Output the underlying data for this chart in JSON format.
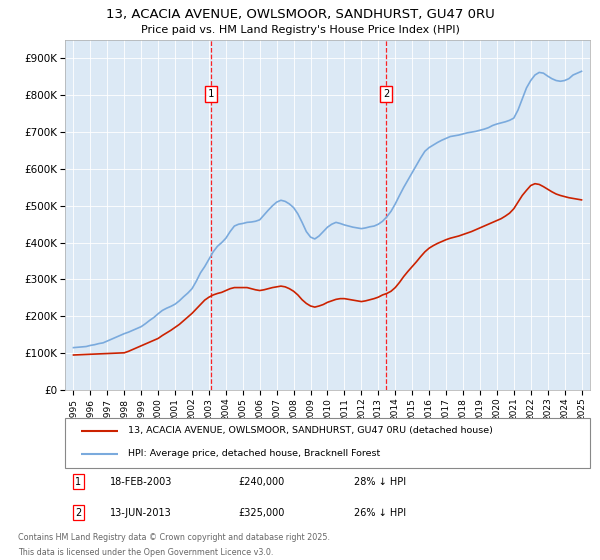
{
  "title_line1": "13, ACACIA AVENUE, OWLSMOOR, SANDHURST, GU47 0RU",
  "title_line2": "Price paid vs. HM Land Registry's House Price Index (HPI)",
  "plot_bg_color": "#dce9f5",
  "legend_entry1": "13, ACACIA AVENUE, OWLSMOOR, SANDHURST, GU47 0RU (detached house)",
  "legend_entry2": "HPI: Average price, detached house, Bracknell Forest",
  "footnote_line1": "Contains HM Land Registry data © Crown copyright and database right 2025.",
  "footnote_line2": "This data is licensed under the Open Government Licence v3.0.",
  "transaction1_date": "18-FEB-2003",
  "transaction1_price": "£240,000",
  "transaction1_label": "28% ↓ HPI",
  "transaction2_date": "13-JUN-2013",
  "transaction2_price": "£325,000",
  "transaction2_label": "26% ↓ HPI",
  "marker1_x": 2003.13,
  "marker2_x": 2013.45,
  "ylim_min": 0,
  "ylim_max": 950000,
  "xlim_min": 1994.5,
  "xlim_max": 2025.5,
  "red_line_color": "#cc2200",
  "blue_line_color": "#7aaadd",
  "hpi_data_x": [
    1995,
    1995.25,
    1995.5,
    1995.75,
    1996,
    1996.25,
    1996.5,
    1996.75,
    1997,
    1997.25,
    1997.5,
    1997.75,
    1998,
    1998.25,
    1998.5,
    1998.75,
    1999,
    1999.25,
    1999.5,
    1999.75,
    2000,
    2000.25,
    2000.5,
    2000.75,
    2001,
    2001.25,
    2001.5,
    2001.75,
    2002,
    2002.25,
    2002.5,
    2002.75,
    2003,
    2003.25,
    2003.5,
    2003.75,
    2004,
    2004.25,
    2004.5,
    2004.75,
    2005,
    2005.25,
    2005.5,
    2005.75,
    2006,
    2006.25,
    2006.5,
    2006.75,
    2007,
    2007.25,
    2007.5,
    2007.75,
    2008,
    2008.25,
    2008.5,
    2008.75,
    2009,
    2009.25,
    2009.5,
    2009.75,
    2010,
    2010.25,
    2010.5,
    2010.75,
    2011,
    2011.25,
    2011.5,
    2011.75,
    2012,
    2012.25,
    2012.5,
    2012.75,
    2013,
    2013.25,
    2013.5,
    2013.75,
    2014,
    2014.25,
    2014.5,
    2014.75,
    2015,
    2015.25,
    2015.5,
    2015.75,
    2016,
    2016.25,
    2016.5,
    2016.75,
    2017,
    2017.25,
    2017.5,
    2017.75,
    2018,
    2018.25,
    2018.5,
    2018.75,
    2019,
    2019.25,
    2019.5,
    2019.75,
    2020,
    2020.25,
    2020.5,
    2020.75,
    2021,
    2021.25,
    2021.5,
    2021.75,
    2022,
    2022.25,
    2022.5,
    2022.75,
    2023,
    2023.25,
    2023.5,
    2023.75,
    2024,
    2024.25,
    2024.5,
    2024.75,
    2025
  ],
  "hpi_data_y": [
    115000,
    116000,
    117000,
    118000,
    121000,
    123000,
    126000,
    128000,
    133000,
    138000,
    143000,
    148000,
    153000,
    157000,
    162000,
    167000,
    172000,
    180000,
    189000,
    197000,
    207000,
    216000,
    222000,
    227000,
    233000,
    242000,
    253000,
    263000,
    275000,
    295000,
    318000,
    335000,
    355000,
    375000,
    390000,
    400000,
    412000,
    430000,
    445000,
    450000,
    452000,
    455000,
    456000,
    458000,
    462000,
    475000,
    488000,
    500000,
    510000,
    515000,
    512000,
    505000,
    495000,
    478000,
    455000,
    430000,
    415000,
    410000,
    418000,
    430000,
    442000,
    450000,
    455000,
    452000,
    448000,
    445000,
    442000,
    440000,
    438000,
    440000,
    443000,
    445000,
    450000,
    458000,
    470000,
    485000,
    505000,
    528000,
    550000,
    570000,
    590000,
    610000,
    630000,
    648000,
    658000,
    665000,
    672000,
    678000,
    683000,
    688000,
    690000,
    692000,
    695000,
    698000,
    700000,
    702000,
    705000,
    708000,
    712000,
    718000,
    722000,
    725000,
    728000,
    732000,
    738000,
    760000,
    790000,
    820000,
    840000,
    855000,
    862000,
    860000,
    852000,
    845000,
    840000,
    838000,
    840000,
    845000,
    855000,
    860000,
    865000
  ],
  "price_data_x": [
    1995,
    1995.25,
    1995.5,
    1995.75,
    1996,
    1996.25,
    1996.5,
    1996.75,
    1997,
    1997.25,
    1997.5,
    1997.75,
    1998,
    1998.25,
    1998.5,
    1998.75,
    1999,
    1999.25,
    1999.5,
    1999.75,
    2000,
    2000.25,
    2000.5,
    2000.75,
    2001,
    2001.25,
    2001.5,
    2001.75,
    2002,
    2002.25,
    2002.5,
    2002.75,
    2003,
    2003.25,
    2003.5,
    2003.75,
    2004,
    2004.25,
    2004.5,
    2004.75,
    2005,
    2005.25,
    2005.5,
    2005.75,
    2006,
    2006.25,
    2006.5,
    2006.75,
    2007,
    2007.25,
    2007.5,
    2007.75,
    2008,
    2008.25,
    2008.5,
    2008.75,
    2009,
    2009.25,
    2009.5,
    2009.75,
    2010,
    2010.25,
    2010.5,
    2010.75,
    2011,
    2011.25,
    2011.5,
    2011.75,
    2012,
    2012.25,
    2012.5,
    2012.75,
    2013,
    2013.25,
    2013.5,
    2013.75,
    2014,
    2014.25,
    2014.5,
    2014.75,
    2015,
    2015.25,
    2015.5,
    2015.75,
    2016,
    2016.25,
    2016.5,
    2016.75,
    2017,
    2017.25,
    2017.5,
    2017.75,
    2018,
    2018.25,
    2018.5,
    2018.75,
    2019,
    2019.25,
    2019.5,
    2019.75,
    2020,
    2020.25,
    2020.5,
    2020.75,
    2021,
    2021.25,
    2021.5,
    2021.75,
    2022,
    2022.25,
    2022.5,
    2022.75,
    2023,
    2023.25,
    2023.5,
    2023.75,
    2024,
    2024.25,
    2024.5,
    2024.75,
    2025
  ],
  "price_data_y": [
    95000,
    95500,
    96000,
    96500,
    97000,
    97500,
    98000,
    98500,
    99000,
    99500,
    100000,
    100500,
    101000,
    105000,
    110000,
    115000,
    120000,
    125000,
    130000,
    135000,
    140000,
    148000,
    155000,
    162000,
    170000,
    178000,
    188000,
    198000,
    208000,
    220000,
    232000,
    244000,
    252000,
    258000,
    262000,
    265000,
    270000,
    275000,
    278000,
    278000,
    278000,
    278000,
    275000,
    272000,
    270000,
    272000,
    275000,
    278000,
    280000,
    282000,
    280000,
    275000,
    268000,
    258000,
    245000,
    235000,
    228000,
    225000,
    228000,
    232000,
    238000,
    242000,
    246000,
    248000,
    248000,
    246000,
    244000,
    242000,
    240000,
    242000,
    245000,
    248000,
    252000,
    258000,
    262000,
    268000,
    278000,
    292000,
    308000,
    322000,
    335000,
    348000,
    362000,
    375000,
    385000,
    392000,
    398000,
    403000,
    408000,
    412000,
    415000,
    418000,
    422000,
    426000,
    430000,
    435000,
    440000,
    445000,
    450000,
    455000,
    460000,
    465000,
    472000,
    480000,
    492000,
    510000,
    528000,
    542000,
    555000,
    560000,
    558000,
    552000,
    545000,
    538000,
    532000,
    528000,
    525000,
    522000,
    520000,
    518000,
    516000
  ],
  "xtick_years": [
    1995,
    1996,
    1997,
    1998,
    1999,
    2000,
    2001,
    2002,
    2003,
    2004,
    2005,
    2006,
    2007,
    2008,
    2009,
    2010,
    2011,
    2012,
    2013,
    2014,
    2015,
    2016,
    2017,
    2018,
    2019,
    2020,
    2021,
    2022,
    2023,
    2024,
    2025
  ]
}
